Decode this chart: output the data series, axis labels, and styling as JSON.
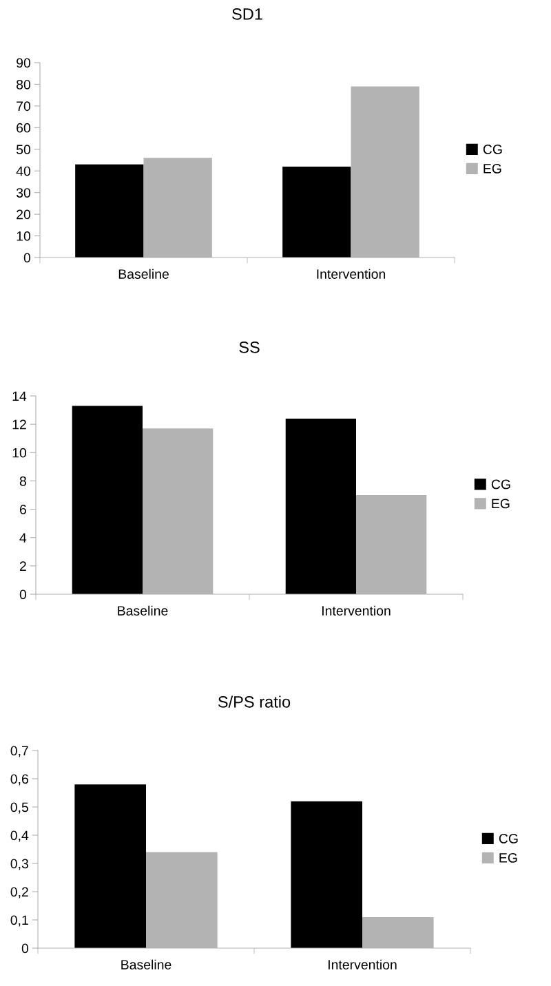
{
  "chart_data": [
    {
      "type": "bar",
      "title": "SD1",
      "categories": [
        "Baseline",
        "Intervention"
      ],
      "series": [
        {
          "name": "CG",
          "color": "#000000",
          "values": [
            43,
            42
          ]
        },
        {
          "name": "EG",
          "color": "#b3b3b3",
          "values": [
            46,
            79
          ]
        }
      ],
      "ylim": [
        0,
        90
      ],
      "yticks": [
        0,
        10,
        20,
        30,
        40,
        50,
        60,
        70,
        80,
        90
      ],
      "grid": false,
      "legend": "right"
    },
    {
      "type": "bar",
      "title": "SS",
      "categories": [
        "Baseline",
        "Intervention"
      ],
      "series": [
        {
          "name": "CG",
          "color": "#000000",
          "values": [
            13.3,
            12.4
          ]
        },
        {
          "name": "EG",
          "color": "#b3b3b3",
          "values": [
            11.7,
            7.0
          ]
        }
      ],
      "ylim": [
        0,
        14
      ],
      "yticks": [
        0,
        2,
        4,
        6,
        8,
        10,
        12,
        14
      ],
      "grid": false,
      "legend": "right"
    },
    {
      "type": "bar",
      "title": "S/PS ratio",
      "categories": [
        "Baseline",
        "Intervention"
      ],
      "series": [
        {
          "name": "CG",
          "color": "#000000",
          "values": [
            0.58,
            0.52
          ]
        },
        {
          "name": "EG",
          "color": "#b3b3b3",
          "values": [
            0.34,
            0.11
          ]
        }
      ],
      "ylim": [
        0,
        0.7
      ],
      "yticks": [
        0,
        {
          "value": 0.1,
          "label": "0,1"
        },
        {
          "value": 0.2,
          "label": "0,2"
        },
        {
          "value": 0.3,
          "label": "0,3"
        },
        {
          "value": 0.4,
          "label": "0,4"
        },
        {
          "value": 0.5,
          "label": "0,5"
        },
        {
          "value": 0.6,
          "label": "0,6"
        },
        {
          "value": 0.7,
          "label": "0,7"
        }
      ],
      "grid": false,
      "legend": "right"
    }
  ]
}
